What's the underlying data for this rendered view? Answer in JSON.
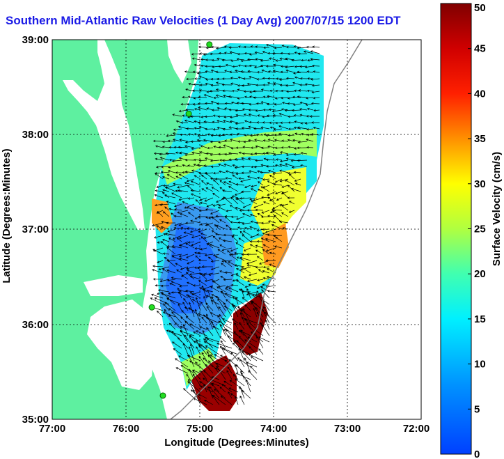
{
  "title": "Southern Mid-Atlantic Raw Velocities (1 Day Avg) 2007/07/15 1200 EDT",
  "map": {
    "xlabel": "Longitude (Degrees:Minutes)",
    "ylabel": "Latitude (Degrees:Minutes)",
    "lon_range": [
      -77,
      -72
    ],
    "lat_range": [
      35,
      39
    ],
    "x_ticks": [
      "77:00",
      "76:00",
      "75:00",
      "74:00",
      "73:00",
      "72:00"
    ],
    "y_ticks": [
      "39:00",
      "38:00",
      "37:00",
      "36:00",
      "35:00"
    ],
    "grid": "dotted",
    "land_color": "#5ef0a0",
    "vector_color": "#000000"
  },
  "colorbar": {
    "label": "Surface Velocity (cm/s)",
    "ticks": [
      "50",
      "45",
      "40",
      "35",
      "30",
      "25",
      "20",
      "15",
      "10",
      "5",
      "0"
    ],
    "range": [
      0,
      50
    ],
    "colormap": "jet"
  },
  "stations": [
    {
      "lon": -74.87,
      "lat": 38.95
    },
    {
      "lon": -75.15,
      "lat": 38.22
    },
    {
      "lon": -75.65,
      "lat": 36.18
    },
    {
      "lon": -75.5,
      "lat": 35.25
    }
  ]
}
